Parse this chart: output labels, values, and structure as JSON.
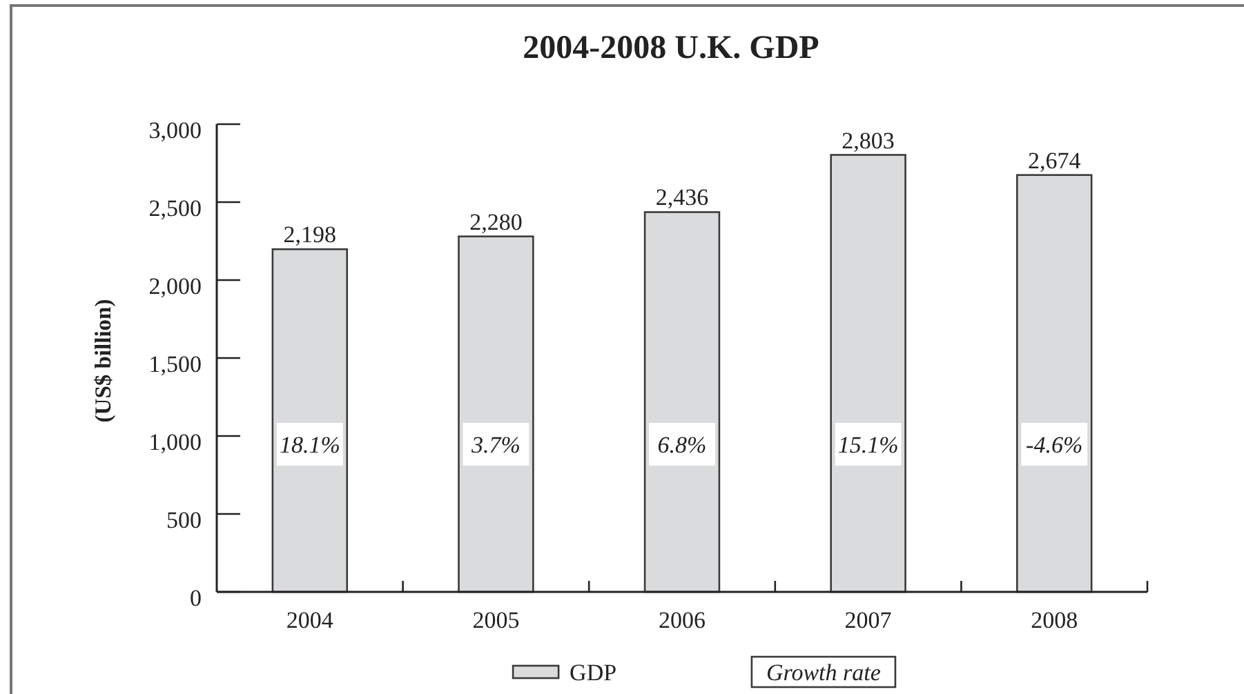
{
  "chart_data": {
    "type": "bar",
    "title": "2004-2008 U.K. GDP",
    "ylabel": "(US$ billion)",
    "categories": [
      "2004",
      "2005",
      "2006",
      "2007",
      "2008"
    ],
    "series": [
      {
        "name": "GDP",
        "color": "#dadbdd",
        "values": [
          2198,
          2280,
          2436,
          2803,
          2674
        ],
        "value_labels": [
          "2,198",
          "2,280",
          "2,436",
          "2,803",
          "2,674"
        ]
      }
    ],
    "ylim": [
      0,
      3000
    ],
    "yticks": [
      {
        "value": 0,
        "label": "0"
      },
      {
        "value": 500,
        "label": "500"
      },
      {
        "value": 1000,
        "label": "1,000"
      },
      {
        "value": 1500,
        "label": "1,500"
      },
      {
        "value": 2000,
        "label": "2,000"
      },
      {
        "value": 2500,
        "label": "2,500"
      },
      {
        "value": 3000,
        "label": "3,000"
      }
    ],
    "legend": "bottom",
    "annotations": [
      "18.1%",
      "3.7%",
      "6.8%",
      "15.1%",
      "-4.6%",
      "Growth rate"
    ]
  }
}
